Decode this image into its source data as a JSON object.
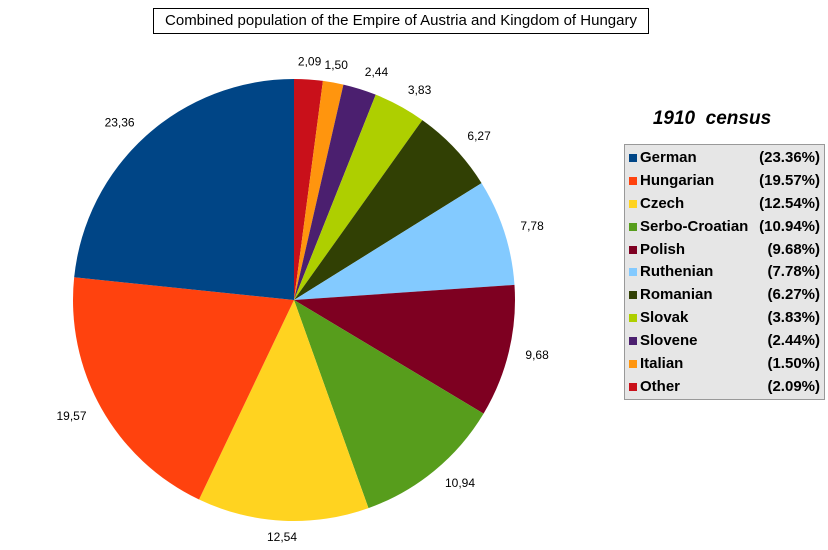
{
  "chart_data": {
    "type": "pie",
    "title": "Combined population of the Empire of Austria and Kingdom of Hungary",
    "subtitle": "1910  census",
    "slices": [
      {
        "name": "Other",
        "value": 2.09,
        "label": "2,09",
        "pct_label": "(2.09%)",
        "color": "#c9101a"
      },
      {
        "name": "Italian",
        "value": 1.5,
        "label": "1,50",
        "pct_label": "(1.50%)",
        "color": "#ff950e"
      },
      {
        "name": "Slovene",
        "value": 2.44,
        "label": "2,44",
        "pct_label": "(2.44%)",
        "color": "#4b1f6f"
      },
      {
        "name": "Slovak",
        "value": 3.83,
        "label": "3,83",
        "pct_label": "(3.83%)",
        "color": "#aecf00"
      },
      {
        "name": "Romanian",
        "value": 6.27,
        "label": "6,27",
        "pct_label": "(6.27%)",
        "color": "#314004"
      },
      {
        "name": "Ruthenian",
        "value": 7.78,
        "label": "7,78",
        "pct_label": "(7.78%)",
        "color": "#83caff"
      },
      {
        "name": "Polish",
        "value": 9.68,
        "label": "9,68",
        "pct_label": "(9.68%)",
        "color": "#7e0021"
      },
      {
        "name": "Serbo-Croatian",
        "value": 10.94,
        "label": "10,94",
        "pct_label": "(10.94%)",
        "color": "#579d1c"
      },
      {
        "name": "Czech",
        "value": 12.54,
        "label": "12,54",
        "pct_label": "(12.54%)",
        "color": "#ffd320"
      },
      {
        "name": "Hungarian",
        "value": 19.57,
        "label": "19,57",
        "pct_label": "(19.57%)",
        "color": "#ff420e"
      },
      {
        "name": "German",
        "value": 23.36,
        "label": "23,36",
        "pct_label": "(23.36%)",
        "color": "#004586"
      }
    ],
    "legend": {
      "placement": "right",
      "order": [
        "German",
        "Hungarian",
        "Czech",
        "Serbo-Croatian",
        "Polish",
        "Ruthenian",
        "Romanian",
        "Slovak",
        "Slovene",
        "Italian",
        "Other"
      ]
    }
  }
}
